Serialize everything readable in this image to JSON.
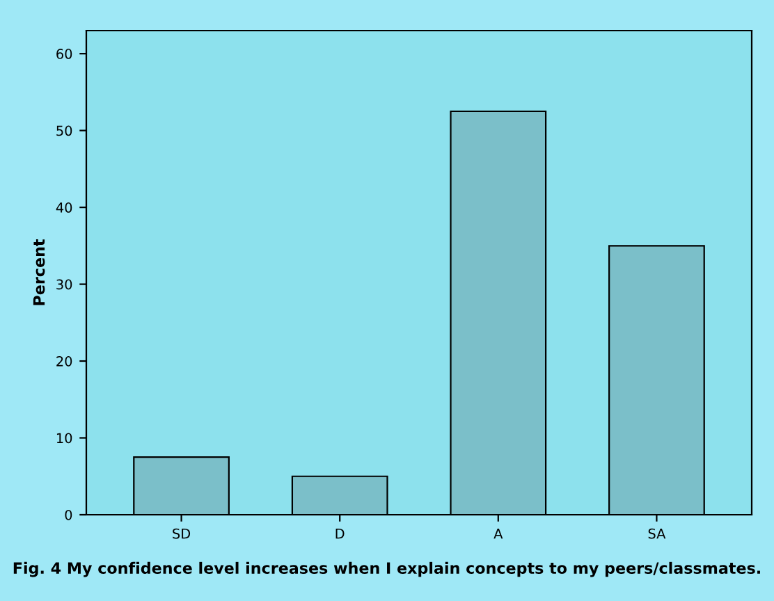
{
  "chart_data": {
    "type": "bar",
    "ylabel": "Percent",
    "categories": [
      "SD",
      "D",
      "A",
      "SA"
    ],
    "values": [
      7.5,
      5,
      52.5,
      35
    ],
    "color": "#7bbfc9",
    "ylim": [
      0,
      63
    ],
    "yticks": [
      0,
      10,
      20,
      30,
      40,
      50,
      60
    ],
    "grid": false,
    "annotations": [
      "Fig. 4 My confidence level increases when I explain concepts to my peers/classmates."
    ]
  }
}
